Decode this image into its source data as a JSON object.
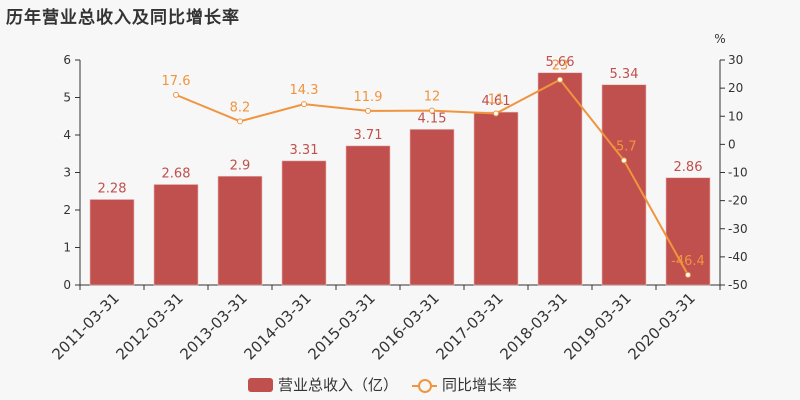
{
  "title": "历年营业总收入及同比增长率",
  "colors": {
    "bar": "#c0504d",
    "line": "#f0953f",
    "axis": "#333333",
    "background": "#f7f7f7"
  },
  "legend": {
    "bar_label": "营业总收入（亿）",
    "line_label": "同比增长率"
  },
  "right_axis_unit": "%",
  "chart_data": {
    "type": "bar+line",
    "title": "历年营业总收入及同比增长率",
    "categories": [
      "2011-03-31",
      "2012-03-31",
      "2013-03-31",
      "2014-03-31",
      "2015-03-31",
      "2016-03-31",
      "2017-03-31",
      "2018-03-31",
      "2019-03-31",
      "2020-03-31"
    ],
    "series": [
      {
        "name": "营业总收入（亿）",
        "type": "bar",
        "axis": "left",
        "values": [
          2.28,
          2.68,
          2.9,
          3.31,
          3.71,
          4.15,
          4.61,
          5.66,
          5.34,
          2.86
        ]
      },
      {
        "name": "同比增长率",
        "type": "line",
        "axis": "right",
        "values": [
          null,
          17.6,
          8.2,
          14.3,
          11.9,
          12,
          11,
          23,
          -5.7,
          -46.4
        ]
      }
    ],
    "left_axis": {
      "ylim": [
        0,
        6
      ],
      "ticks": [
        0,
        1,
        2,
        3,
        4,
        5,
        6
      ]
    },
    "right_axis": {
      "label": "%",
      "ylim": [
        -50,
        30
      ],
      "ticks": [
        -50,
        -40,
        -30,
        -20,
        -10,
        0,
        10,
        20,
        30
      ]
    },
    "xlabel": "",
    "ylabel": "",
    "grid": false,
    "legend_position": "bottom"
  }
}
